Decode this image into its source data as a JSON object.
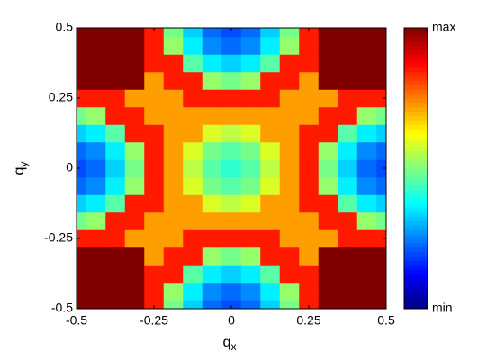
{
  "chart_data": {
    "type": "heatmap",
    "colormap": "jet",
    "xlabel": "q",
    "xlabel_sub": "x",
    "ylabel": "q",
    "ylabel_sub": "y",
    "x": [
      -0.5,
      -0.4375,
      -0.375,
      -0.3125,
      -0.25,
      -0.1875,
      -0.125,
      -0.0625,
      0,
      0.0625,
      0.125,
      0.1875,
      0.25,
      0.3125,
      0.375,
      0.4375,
      0.5
    ],
    "y": [
      -0.5,
      -0.4375,
      -0.375,
      -0.3125,
      -0.25,
      -0.1875,
      -0.125,
      -0.0625,
      0,
      0.0625,
      0.125,
      0.1875,
      0.25,
      0.3125,
      0.375,
      0.4375,
      0.5
    ],
    "z": [
      [
        1,
        1,
        1,
        1,
        0.85,
        0.49,
        0.33,
        0.23,
        0.2,
        0.23,
        0.33,
        0.49,
        0.85,
        1,
        1,
        1,
        1
      ],
      [
        1,
        1,
        1,
        1,
        0.85,
        0.52,
        0.36,
        0.26,
        0.23,
        0.26,
        0.36,
        0.52,
        0.85,
        1,
        1,
        1,
        1
      ],
      [
        1,
        1,
        1,
        1,
        0.85,
        0.85,
        0.46,
        0.36,
        0.33,
        0.36,
        0.46,
        0.85,
        0.85,
        1,
        1,
        1,
        1
      ],
      [
        1,
        1,
        1,
        1,
        0.72,
        0.85,
        0.85,
        0.52,
        0.49,
        0.52,
        0.85,
        0.85,
        0.72,
        1,
        1,
        1,
        1
      ],
      [
        0.85,
        0.85,
        0.85,
        0.72,
        0.72,
        0.72,
        0.85,
        0.85,
        0.85,
        0.85,
        0.85,
        0.72,
        0.72,
        0.72,
        0.85,
        0.85,
        0.85
      ],
      [
        0.49,
        0.52,
        0.85,
        0.85,
        0.72,
        0.72,
        0.72,
        0.72,
        0.72,
        0.72,
        0.72,
        0.72,
        0.72,
        0.85,
        0.85,
        0.52,
        0.49
      ],
      [
        0.33,
        0.36,
        0.46,
        0.85,
        0.85,
        0.72,
        0.72,
        0.59,
        0.56,
        0.59,
        0.72,
        0.72,
        0.85,
        0.85,
        0.46,
        0.36,
        0.33
      ],
      [
        0.23,
        0.26,
        0.36,
        0.52,
        0.85,
        0.72,
        0.59,
        0.49,
        0.46,
        0.49,
        0.59,
        0.72,
        0.85,
        0.52,
        0.36,
        0.26,
        0.23
      ],
      [
        0.2,
        0.23,
        0.33,
        0.49,
        0.85,
        0.72,
        0.56,
        0.46,
        0.42,
        0.46,
        0.56,
        0.72,
        0.85,
        0.49,
        0.33,
        0.23,
        0.2
      ],
      [
        0.23,
        0.26,
        0.36,
        0.52,
        0.85,
        0.72,
        0.59,
        0.49,
        0.46,
        0.49,
        0.59,
        0.72,
        0.85,
        0.52,
        0.36,
        0.26,
        0.23
      ],
      [
        0.33,
        0.36,
        0.46,
        0.85,
        0.85,
        0.72,
        0.72,
        0.59,
        0.56,
        0.59,
        0.72,
        0.72,
        0.85,
        0.85,
        0.46,
        0.36,
        0.33
      ],
      [
        0.49,
        0.52,
        0.85,
        0.85,
        0.72,
        0.72,
        0.72,
        0.72,
        0.72,
        0.72,
        0.72,
        0.72,
        0.72,
        0.85,
        0.85,
        0.52,
        0.49
      ],
      [
        0.85,
        0.85,
        0.85,
        0.72,
        0.72,
        0.72,
        0.85,
        0.85,
        0.85,
        0.85,
        0.85,
        0.72,
        0.72,
        0.72,
        0.85,
        0.85,
        0.85
      ],
      [
        1,
        1,
        1,
        1,
        0.72,
        0.85,
        0.85,
        0.52,
        0.49,
        0.52,
        0.85,
        0.85,
        0.72,
        1,
        1,
        1,
        1
      ],
      [
        1,
        1,
        1,
        1,
        0.85,
        0.85,
        0.46,
        0.36,
        0.33,
        0.36,
        0.46,
        0.85,
        0.85,
        1,
        1,
        1,
        1
      ],
      [
        1,
        1,
        1,
        1,
        0.85,
        0.52,
        0.36,
        0.26,
        0.23,
        0.26,
        0.36,
        0.52,
        0.85,
        1,
        1,
        1,
        1
      ],
      [
        1,
        1,
        1,
        1,
        0.85,
        0.49,
        0.33,
        0.23,
        0.2,
        0.23,
        0.33,
        0.49,
        0.85,
        1,
        1,
        1,
        1
      ]
    ],
    "xlim": [
      -0.5,
      0.5
    ],
    "ylim": [
      -0.5,
      0.5
    ],
    "xticks": [
      -0.5,
      -0.25,
      0,
      0.25,
      0.5
    ],
    "yticks": [
      -0.5,
      -0.25,
      0,
      0.25,
      0.5
    ],
    "zlim": [
      0,
      1
    ],
    "zticks": [
      {
        "value": 0,
        "label": "min"
      },
      {
        "value": 1,
        "label": "max"
      }
    ]
  }
}
